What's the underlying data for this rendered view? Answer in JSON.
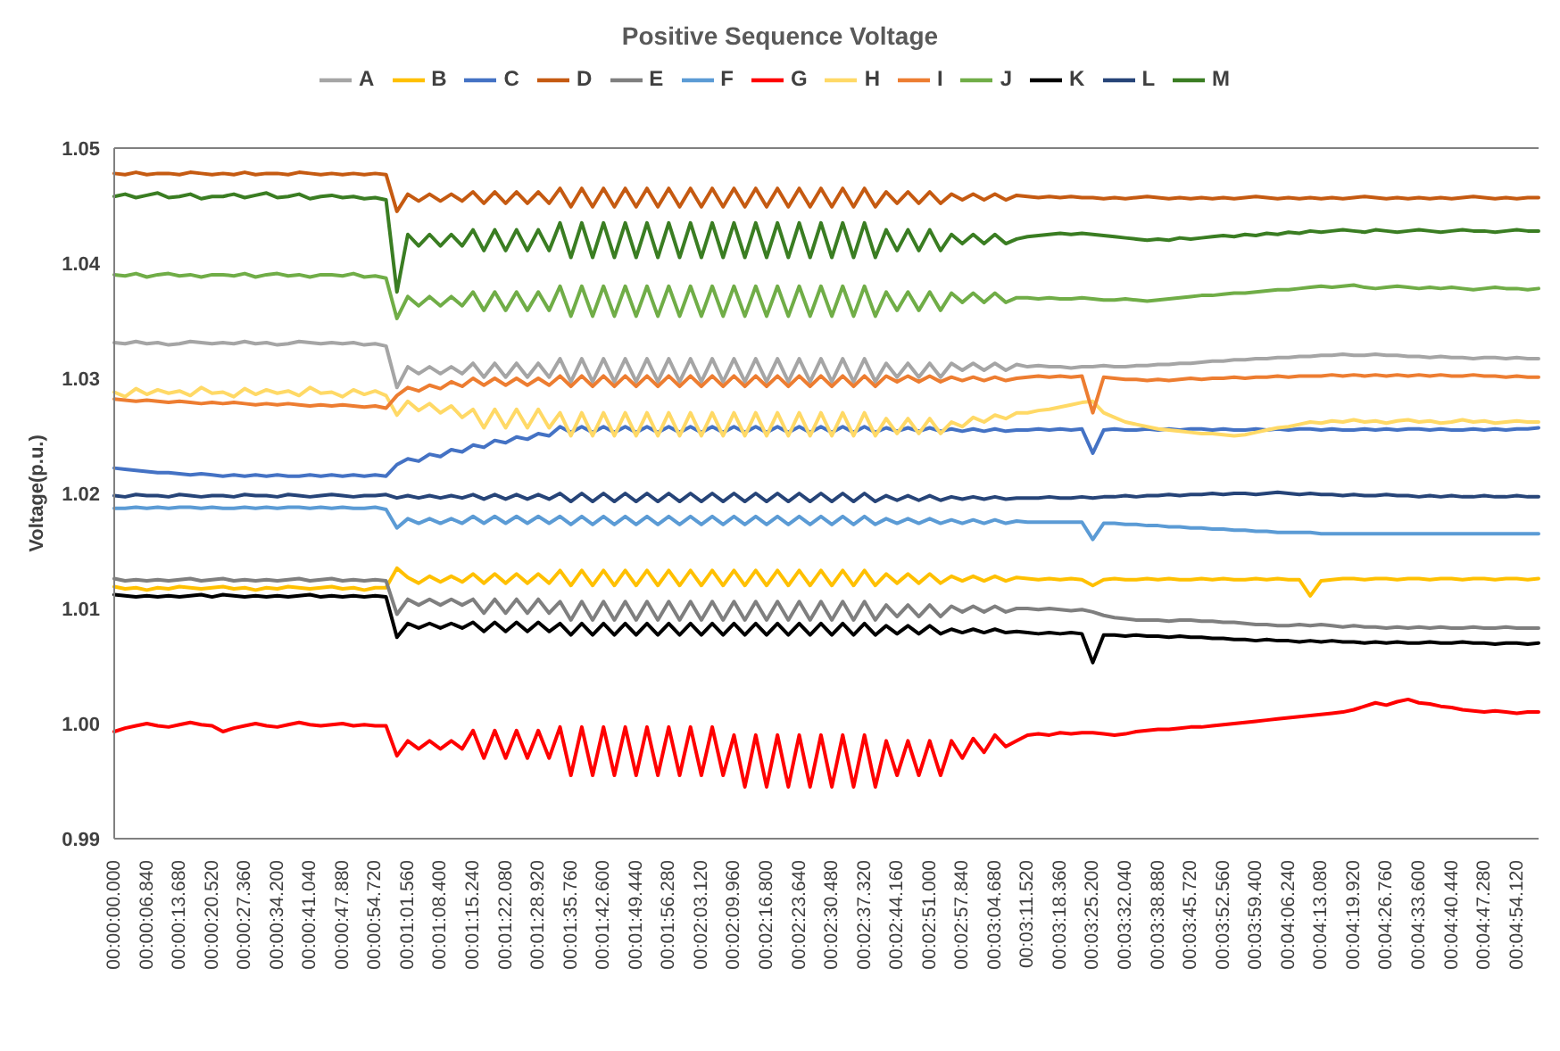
{
  "chart_data": {
    "type": "line",
    "title": "Positive Sequence Voltage",
    "ylabel": "Voltage(p.u.)",
    "legend": "top",
    "marker": "none",
    "line_style": "solid",
    "categories": [
      "00:00:00.000",
      null,
      null,
      "00:00:06.840",
      null,
      null,
      "00:00:13.680",
      null,
      null,
      "00:00:20.520",
      null,
      null,
      "00:00:27.360",
      null,
      null,
      "00:00:34.200",
      null,
      null,
      "00:00:41.040",
      null,
      null,
      "00:00:47.880",
      null,
      null,
      "00:00:54.720",
      null,
      null,
      "00:01:01.560",
      null,
      null,
      "00:01:08.400",
      null,
      null,
      "00:01:15.240",
      null,
      null,
      "00:01:22.080",
      null,
      null,
      "00:01:28.920",
      null,
      null,
      "00:01:35.760",
      null,
      null,
      "00:01:42.600",
      null,
      null,
      "00:01:49.440",
      null,
      null,
      "00:01:56.280",
      null,
      null,
      "00:02:03.120",
      null,
      null,
      "00:02:09.960",
      null,
      null,
      "00:02:16.800",
      null,
      null,
      "00:02:23.640",
      null,
      null,
      "00:02:30.480",
      null,
      null,
      "00:02:37.320",
      null,
      null,
      "00:02:44.160",
      null,
      null,
      "00:02:51.000",
      null,
      null,
      "00:02:57.840",
      null,
      null,
      "00:03:04.680",
      null,
      null,
      "00:03:11.520",
      null,
      null,
      "00:03:18.360",
      null,
      null,
      "00:03:25.200",
      null,
      null,
      "00:03:32.040",
      null,
      null,
      "00:03:38.880",
      null,
      null,
      "00:03:45.720",
      null,
      null,
      "00:03:52.560",
      null,
      null,
      "00:03:59.400",
      null,
      null,
      "00:04:06.240",
      null,
      null,
      "00:04:13.080",
      null,
      null,
      "00:04:19.920",
      null,
      null,
      "00:04:26.760",
      null,
      null,
      "00:04:33.600",
      null,
      null,
      "00:04:40.440",
      null,
      null,
      "00:04:47.280",
      null,
      null,
      "00:04:54.120",
      null,
      null
    ],
    "ylim": [
      0.99,
      1.05
    ],
    "yticks": [
      0.99,
      {
        "value": 1,
        "label": "1.00"
      },
      1.01,
      1.02,
      1.03,
      1.04,
      1.05
    ],
    "series": [
      {
        "name": "A",
        "color": "#a5a5a5",
        "values": [
          1.0331,
          1.033,
          1.0332,
          1.033,
          1.0331,
          1.0329,
          1.033,
          1.0332,
          1.0331,
          1.033,
          1.0331,
          1.033,
          1.0332,
          1.033,
          1.0331,
          1.0329,
          1.033,
          1.0332,
          1.0331,
          1.033,
          1.0331,
          1.033,
          1.0331,
          1.0329,
          1.033,
          1.0328,
          1.0292,
          1.031,
          1.0304,
          1.031,
          1.0304,
          1.031,
          1.0304,
          1.0313,
          1.0301,
          1.0313,
          1.0301,
          1.0313,
          1.0301,
          1.0313,
          1.0301,
          1.0317,
          1.0297,
          1.0317,
          1.0297,
          1.0317,
          1.0297,
          1.0317,
          1.0297,
          1.0317,
          1.0297,
          1.0317,
          1.0297,
          1.0317,
          1.0297,
          1.0317,
          1.0297,
          1.0317,
          1.0297,
          1.0317,
          1.0297,
          1.0317,
          1.0297,
          1.0317,
          1.0297,
          1.0317,
          1.0297,
          1.0317,
          1.0297,
          1.0317,
          1.0297,
          1.0313,
          1.0301,
          1.0313,
          1.0301,
          1.0313,
          1.0301,
          1.0313,
          1.0307,
          1.0313,
          1.0307,
          1.0313,
          1.0307,
          1.0312,
          1.031,
          1.0311,
          1.031,
          1.031,
          1.0309,
          1.031,
          1.031,
          1.0311,
          1.031,
          1.031,
          1.0311,
          1.0311,
          1.0312,
          1.0312,
          1.0313,
          1.0313,
          1.0314,
          1.0315,
          1.0315,
          1.0316,
          1.0316,
          1.0317,
          1.0317,
          1.0318,
          1.0318,
          1.0319,
          1.0319,
          1.032,
          1.032,
          1.0321,
          1.032,
          1.032,
          1.0321,
          1.032,
          1.032,
          1.0319,
          1.0319,
          1.0318,
          1.0319,
          1.0318,
          1.0318,
          1.0317,
          1.0318,
          1.0318,
          1.0317,
          1.0318,
          1.0317,
          1.0317
        ]
      },
      {
        "name": "B",
        "color": "#ffc000",
        "values": [
          1.0119,
          1.0117,
          1.0118,
          1.0116,
          1.0118,
          1.0117,
          1.0119,
          1.0118,
          1.0117,
          1.0118,
          1.0119,
          1.0117,
          1.0118,
          1.0116,
          1.0118,
          1.0117,
          1.0119,
          1.0118,
          1.0117,
          1.0118,
          1.0119,
          1.0117,
          1.0118,
          1.0116,
          1.0118,
          1.0118,
          1.0135,
          1.0127,
          1.0122,
          1.0128,
          1.0123,
          1.0128,
          1.0123,
          1.013,
          1.0122,
          1.013,
          1.0122,
          1.013,
          1.0122,
          1.013,
          1.0122,
          1.0133,
          1.012,
          1.0133,
          1.012,
          1.0133,
          1.012,
          1.0133,
          1.012,
          1.0133,
          1.012,
          1.0133,
          1.012,
          1.0133,
          1.012,
          1.0133,
          1.012,
          1.0133,
          1.012,
          1.0133,
          1.012,
          1.0133,
          1.012,
          1.0133,
          1.012,
          1.0133,
          1.012,
          1.0133,
          1.012,
          1.0133,
          1.012,
          1.013,
          1.0122,
          1.013,
          1.0122,
          1.013,
          1.0122,
          1.0128,
          1.0124,
          1.0128,
          1.0124,
          1.0128,
          1.0124,
          1.0127,
          1.0126,
          1.0125,
          1.0126,
          1.0125,
          1.0126,
          1.0125,
          1.012,
          1.0125,
          1.0126,
          1.0125,
          1.0125,
          1.0126,
          1.0125,
          1.0126,
          1.0125,
          1.0125,
          1.0126,
          1.0125,
          1.0126,
          1.0125,
          1.0125,
          1.0126,
          1.0125,
          1.0126,
          1.0125,
          1.0125,
          1.0111,
          1.0124,
          1.0125,
          1.0126,
          1.0126,
          1.0125,
          1.0126,
          1.0126,
          1.0125,
          1.0126,
          1.0126,
          1.0125,
          1.0126,
          1.0126,
          1.0125,
          1.0126,
          1.0126,
          1.0125,
          1.0126,
          1.0126,
          1.0125,
          1.0126
        ]
      },
      {
        "name": "C",
        "color": "#4472c4",
        "values": [
          1.0222,
          1.0221,
          1.022,
          1.0219,
          1.0218,
          1.0218,
          1.0217,
          1.0216,
          1.0217,
          1.0216,
          1.0215,
          1.0216,
          1.0215,
          1.0216,
          1.0215,
          1.0216,
          1.0215,
          1.0215,
          1.0216,
          1.0215,
          1.0216,
          1.0215,
          1.0216,
          1.0215,
          1.0216,
          1.0215,
          1.0225,
          1.023,
          1.0228,
          1.0234,
          1.0232,
          1.0238,
          1.0236,
          1.0242,
          1.024,
          1.0246,
          1.0244,
          1.0249,
          1.0247,
          1.0252,
          1.025,
          1.0258,
          1.0253,
          1.0258,
          1.0253,
          1.0258,
          1.0253,
          1.0258,
          1.0253,
          1.0258,
          1.0253,
          1.0258,
          1.0253,
          1.0258,
          1.0253,
          1.0258,
          1.0253,
          1.0258,
          1.0253,
          1.0258,
          1.0253,
          1.0258,
          1.0253,
          1.0258,
          1.0253,
          1.0258,
          1.0253,
          1.0258,
          1.0253,
          1.0258,
          1.0253,
          1.0257,
          1.0254,
          1.0257,
          1.0254,
          1.0257,
          1.0254,
          1.0256,
          1.0254,
          1.0256,
          1.0254,
          1.0256,
          1.0254,
          1.0255,
          1.0255,
          1.0256,
          1.0255,
          1.0256,
          1.0255,
          1.0256,
          1.0235,
          1.0255,
          1.0256,
          1.0255,
          1.0255,
          1.0256,
          1.0255,
          1.0256,
          1.0255,
          1.0256,
          1.0256,
          1.0255,
          1.0256,
          1.0255,
          1.0255,
          1.0256,
          1.0255,
          1.0256,
          1.0255,
          1.0256,
          1.0256,
          1.0255,
          1.0256,
          1.0255,
          1.0255,
          1.0256,
          1.0255,
          1.0256,
          1.0255,
          1.0256,
          1.0256,
          1.0255,
          1.0256,
          1.0255,
          1.0255,
          1.0256,
          1.0255,
          1.0256,
          1.0255,
          1.0256,
          1.0256,
          1.0257
        ]
      },
      {
        "name": "D",
        "color": "#c55a11",
        "values": [
          1.0478,
          1.0477,
          1.0479,
          1.0477,
          1.0478,
          1.0478,
          1.0477,
          1.0479,
          1.0478,
          1.0477,
          1.0478,
          1.0477,
          1.0479,
          1.0477,
          1.0478,
          1.0478,
          1.0477,
          1.0479,
          1.0478,
          1.0477,
          1.0478,
          1.0477,
          1.0478,
          1.0477,
          1.0478,
          1.0477,
          1.0445,
          1.046,
          1.0454,
          1.046,
          1.0454,
          1.046,
          1.0454,
          1.0462,
          1.0452,
          1.0462,
          1.0452,
          1.0462,
          1.0452,
          1.0462,
          1.0452,
          1.0465,
          1.0449,
          1.0465,
          1.0449,
          1.0465,
          1.0449,
          1.0465,
          1.0449,
          1.0465,
          1.0449,
          1.0465,
          1.0449,
          1.0465,
          1.0449,
          1.0465,
          1.0449,
          1.0465,
          1.0449,
          1.0465,
          1.0449,
          1.0465,
          1.0449,
          1.0465,
          1.0449,
          1.0465,
          1.0449,
          1.0465,
          1.0449,
          1.0465,
          1.0449,
          1.0462,
          1.0452,
          1.0462,
          1.0452,
          1.0462,
          1.0452,
          1.046,
          1.0455,
          1.046,
          1.0455,
          1.046,
          1.0455,
          1.0459,
          1.0458,
          1.0457,
          1.0458,
          1.0457,
          1.0458,
          1.0457,
          1.0457,
          1.0456,
          1.0457,
          1.0456,
          1.0457,
          1.0458,
          1.0457,
          1.0456,
          1.0457,
          1.0456,
          1.0457,
          1.0456,
          1.0457,
          1.0456,
          1.0457,
          1.0458,
          1.0457,
          1.0456,
          1.0457,
          1.0456,
          1.0457,
          1.0456,
          1.0457,
          1.0456,
          1.0457,
          1.0458,
          1.0457,
          1.0456,
          1.0457,
          1.0456,
          1.0457,
          1.0456,
          1.0457,
          1.0456,
          1.0457,
          1.0458,
          1.0457,
          1.0456,
          1.0457,
          1.0456,
          1.0457,
          1.0457
        ]
      },
      {
        "name": "E",
        "color": "#7f7f7f",
        "values": [
          1.0126,
          1.0124,
          1.0125,
          1.0124,
          1.0125,
          1.0124,
          1.0125,
          1.0126,
          1.0124,
          1.0125,
          1.0126,
          1.0124,
          1.0125,
          1.0124,
          1.0125,
          1.0124,
          1.0125,
          1.0126,
          1.0124,
          1.0125,
          1.0126,
          1.0124,
          1.0125,
          1.0124,
          1.0125,
          1.0124,
          1.0095,
          1.0108,
          1.0103,
          1.0108,
          1.0103,
          1.0108,
          1.0103,
          1.0108,
          1.0096,
          1.0108,
          1.0096,
          1.0108,
          1.0096,
          1.0108,
          1.0096,
          1.0106,
          1.009,
          1.0106,
          1.009,
          1.0106,
          1.009,
          1.0106,
          1.009,
          1.0106,
          1.009,
          1.0106,
          1.009,
          1.0106,
          1.009,
          1.0106,
          1.009,
          1.0106,
          1.009,
          1.0106,
          1.009,
          1.0106,
          1.009,
          1.0106,
          1.009,
          1.0106,
          1.009,
          1.0106,
          1.009,
          1.0106,
          1.009,
          1.0103,
          1.0093,
          1.0103,
          1.0093,
          1.0103,
          1.0093,
          1.0102,
          1.0097,
          1.0102,
          1.0097,
          1.0102,
          1.0097,
          1.01,
          1.01,
          1.0099,
          1.01,
          1.0099,
          1.0098,
          1.0099,
          1.0097,
          1.0094,
          1.0092,
          1.0091,
          1.009,
          1.009,
          1.009,
          1.0089,
          1.009,
          1.009,
          1.0089,
          1.0089,
          1.0088,
          1.0088,
          1.0087,
          1.0086,
          1.0086,
          1.0085,
          1.0085,
          1.0086,
          1.0085,
          1.0086,
          1.0085,
          1.0084,
          1.0085,
          1.0084,
          1.0084,
          1.0083,
          1.0084,
          1.0083,
          1.0084,
          1.0083,
          1.0084,
          1.0083,
          1.0083,
          1.0084,
          1.0083,
          1.0083,
          1.0084,
          1.0083,
          1.0083,
          1.0083
        ]
      },
      {
        "name": "F",
        "color": "#5b9bd5",
        "values": [
          1.0187,
          1.0187,
          1.0188,
          1.0187,
          1.0188,
          1.0187,
          1.0188,
          1.0188,
          1.0187,
          1.0188,
          1.0187,
          1.0187,
          1.0188,
          1.0187,
          1.0188,
          1.0187,
          1.0188,
          1.0188,
          1.0187,
          1.0188,
          1.0187,
          1.0188,
          1.0187,
          1.0187,
          1.0188,
          1.0186,
          1.017,
          1.0178,
          1.0174,
          1.0178,
          1.0174,
          1.0178,
          1.0174,
          1.018,
          1.0174,
          1.018,
          1.0174,
          1.018,
          1.0174,
          1.018,
          1.0174,
          1.018,
          1.0173,
          1.018,
          1.0173,
          1.018,
          1.0173,
          1.018,
          1.0173,
          1.018,
          1.0173,
          1.018,
          1.0173,
          1.018,
          1.0173,
          1.018,
          1.0173,
          1.018,
          1.0173,
          1.018,
          1.0173,
          1.018,
          1.0173,
          1.018,
          1.0173,
          1.018,
          1.0173,
          1.018,
          1.0173,
          1.018,
          1.0173,
          1.0178,
          1.0174,
          1.0178,
          1.0174,
          1.0178,
          1.0174,
          1.0177,
          1.0174,
          1.0177,
          1.0174,
          1.0177,
          1.0174,
          1.0176,
          1.0175,
          1.0175,
          1.0175,
          1.0175,
          1.0175,
          1.0175,
          1.016,
          1.0174,
          1.0174,
          1.0173,
          1.0173,
          1.0172,
          1.0172,
          1.0171,
          1.0171,
          1.017,
          1.017,
          1.0169,
          1.0169,
          1.0168,
          1.0168,
          1.0167,
          1.0167,
          1.0166,
          1.0166,
          1.0166,
          1.0166,
          1.0165,
          1.0165,
          1.0165,
          1.0165,
          1.0165,
          1.0165,
          1.0165,
          1.0165,
          1.0165,
          1.0165,
          1.0165,
          1.0165,
          1.0165,
          1.0165,
          1.0165,
          1.0165,
          1.0165,
          1.0165,
          1.0165,
          1.0165,
          1.0165
        ]
      },
      {
        "name": "G",
        "color": "#ff0000",
        "values": [
          0.9993,
          0.9996,
          0.9998,
          1.0,
          0.9998,
          0.9997,
          0.9999,
          1.0001,
          0.9999,
          0.9998,
          0.9993,
          0.9996,
          0.9998,
          1.0,
          0.9998,
          0.9997,
          0.9999,
          1.0001,
          0.9999,
          0.9998,
          0.9999,
          1.0,
          0.9998,
          0.9999,
          0.9998,
          0.9998,
          0.9972,
          0.9985,
          0.9978,
          0.9985,
          0.9978,
          0.9985,
          0.9978,
          0.9994,
          0.997,
          0.9994,
          0.997,
          0.9994,
          0.997,
          0.9994,
          0.997,
          0.9997,
          0.9955,
          0.9997,
          0.9955,
          0.9997,
          0.9955,
          0.9997,
          0.9955,
          0.9997,
          0.9955,
          0.9997,
          0.9955,
          0.9997,
          0.9955,
          0.9997,
          0.9955,
          0.999,
          0.9945,
          0.999,
          0.9945,
          0.999,
          0.9945,
          0.999,
          0.9945,
          0.999,
          0.9945,
          0.999,
          0.9945,
          0.999,
          0.9945,
          0.9985,
          0.9955,
          0.9985,
          0.9955,
          0.9985,
          0.9955,
          0.9985,
          0.997,
          0.9987,
          0.9975,
          0.999,
          0.998,
          0.9985,
          0.999,
          0.9991,
          0.999,
          0.9992,
          0.9991,
          0.9992,
          0.9992,
          0.9991,
          0.999,
          0.9991,
          0.9993,
          0.9994,
          0.9995,
          0.9995,
          0.9996,
          0.9997,
          0.9997,
          0.9998,
          0.9999,
          1.0,
          1.0001,
          1.0002,
          1.0003,
          1.0004,
          1.0005,
          1.0006,
          1.0007,
          1.0008,
          1.0009,
          1.001,
          1.0012,
          1.0015,
          1.0018,
          1.0016,
          1.0019,
          1.0021,
          1.0018,
          1.0017,
          1.0015,
          1.0014,
          1.0012,
          1.0011,
          1.001,
          1.0011,
          1.001,
          1.0009,
          1.001,
          1.001
        ]
      },
      {
        "name": "H",
        "color": "#ffd966",
        "values": [
          1.0288,
          1.0284,
          1.0291,
          1.0286,
          1.029,
          1.0287,
          1.0289,
          1.0285,
          1.0292,
          1.0287,
          1.0288,
          1.0284,
          1.0291,
          1.0286,
          1.029,
          1.0287,
          1.0289,
          1.0285,
          1.0292,
          1.0287,
          1.0288,
          1.0284,
          1.029,
          1.0286,
          1.0289,
          1.0285,
          1.0268,
          1.028,
          1.0272,
          1.0278,
          1.027,
          1.0276,
          1.0266,
          1.0273,
          1.0257,
          1.0273,
          1.0257,
          1.0273,
          1.0257,
          1.0273,
          1.0257,
          1.027,
          1.025,
          1.027,
          1.025,
          1.027,
          1.025,
          1.027,
          1.025,
          1.027,
          1.025,
          1.027,
          1.025,
          1.027,
          1.025,
          1.027,
          1.025,
          1.027,
          1.025,
          1.027,
          1.025,
          1.027,
          1.025,
          1.027,
          1.025,
          1.027,
          1.025,
          1.027,
          1.025,
          1.027,
          1.025,
          1.0265,
          1.0252,
          1.0265,
          1.0252,
          1.0265,
          1.0252,
          1.0262,
          1.0258,
          1.0266,
          1.0262,
          1.0268,
          1.0265,
          1.027,
          1.027,
          1.0272,
          1.0273,
          1.0275,
          1.0277,
          1.0279,
          1.028,
          1.027,
          1.0266,
          1.0262,
          1.026,
          1.0258,
          1.0256,
          1.0255,
          1.0254,
          1.0253,
          1.0252,
          1.0252,
          1.0251,
          1.025,
          1.0251,
          1.0253,
          1.0255,
          1.0257,
          1.0258,
          1.026,
          1.0262,
          1.0261,
          1.0263,
          1.0262,
          1.0264,
          1.0262,
          1.0263,
          1.0261,
          1.0263,
          1.0264,
          1.0262,
          1.0263,
          1.0261,
          1.0262,
          1.0264,
          1.0262,
          1.0263,
          1.0261,
          1.0262,
          1.0263,
          1.0262,
          1.0262
        ]
      },
      {
        "name": "I",
        "color": "#ed7d31",
        "values": [
          1.0282,
          1.0281,
          1.028,
          1.0281,
          1.028,
          1.0279,
          1.028,
          1.0279,
          1.0278,
          1.0279,
          1.0278,
          1.0279,
          1.0278,
          1.0277,
          1.0278,
          1.0277,
          1.0278,
          1.0277,
          1.0276,
          1.0277,
          1.0276,
          1.0277,
          1.0276,
          1.0275,
          1.0276,
          1.0274,
          1.0285,
          1.0292,
          1.0289,
          1.0294,
          1.0291,
          1.0297,
          1.0293,
          1.03,
          1.0294,
          1.03,
          1.0294,
          1.03,
          1.0294,
          1.03,
          1.0294,
          1.0302,
          1.0293,
          1.0302,
          1.0293,
          1.0302,
          1.0293,
          1.0302,
          1.0293,
          1.0302,
          1.0293,
          1.0302,
          1.0293,
          1.0302,
          1.0293,
          1.0302,
          1.0293,
          1.0302,
          1.0293,
          1.0302,
          1.0293,
          1.0302,
          1.0293,
          1.0302,
          1.0293,
          1.0302,
          1.0293,
          1.0302,
          1.0293,
          1.0302,
          1.0293,
          1.0302,
          1.0297,
          1.0302,
          1.0297,
          1.0302,
          1.0297,
          1.0301,
          1.0298,
          1.0301,
          1.0298,
          1.0301,
          1.0298,
          1.03,
          1.0301,
          1.0302,
          1.0301,
          1.0302,
          1.0301,
          1.0302,
          1.027,
          1.0301,
          1.03,
          1.0299,
          1.0299,
          1.0298,
          1.0299,
          1.0298,
          1.0299,
          1.03,
          1.0299,
          1.03,
          1.03,
          1.0301,
          1.03,
          1.0301,
          1.0301,
          1.0302,
          1.0301,
          1.0302,
          1.0302,
          1.0302,
          1.0303,
          1.0302,
          1.0303,
          1.0302,
          1.0303,
          1.0302,
          1.0303,
          1.0302,
          1.0303,
          1.0302,
          1.0303,
          1.0302,
          1.0302,
          1.0303,
          1.0302,
          1.0302,
          1.0301,
          1.0302,
          1.0301,
          1.0301
        ]
      },
      {
        "name": "J",
        "color": "#70ad47",
        "values": [
          1.039,
          1.0389,
          1.0391,
          1.0388,
          1.039,
          1.0391,
          1.0389,
          1.039,
          1.0388,
          1.039,
          1.039,
          1.0389,
          1.0391,
          1.0388,
          1.039,
          1.0391,
          1.0389,
          1.039,
          1.0388,
          1.039,
          1.039,
          1.0389,
          1.0391,
          1.0388,
          1.0389,
          1.0387,
          1.0352,
          1.0371,
          1.0363,
          1.0371,
          1.0363,
          1.0371,
          1.0363,
          1.0375,
          1.0359,
          1.0375,
          1.0359,
          1.0375,
          1.0359,
          1.0375,
          1.0359,
          1.038,
          1.0354,
          1.038,
          1.0354,
          1.038,
          1.0354,
          1.038,
          1.0354,
          1.038,
          1.0354,
          1.038,
          1.0354,
          1.038,
          1.0354,
          1.038,
          1.0354,
          1.038,
          1.0354,
          1.038,
          1.0354,
          1.038,
          1.0354,
          1.038,
          1.0354,
          1.038,
          1.0354,
          1.038,
          1.0354,
          1.038,
          1.0354,
          1.0375,
          1.0359,
          1.0375,
          1.0359,
          1.0375,
          1.0359,
          1.0374,
          1.0366,
          1.0374,
          1.0366,
          1.0374,
          1.0366,
          1.037,
          1.037,
          1.0369,
          1.037,
          1.0369,
          1.0369,
          1.037,
          1.0369,
          1.0368,
          1.0368,
          1.0369,
          1.0368,
          1.0367,
          1.0368,
          1.0369,
          1.037,
          1.0371,
          1.0372,
          1.0372,
          1.0373,
          1.0374,
          1.0374,
          1.0375,
          1.0376,
          1.0377,
          1.0377,
          1.0378,
          1.0379,
          1.038,
          1.0379,
          1.038,
          1.0381,
          1.0379,
          1.0378,
          1.0379,
          1.038,
          1.0379,
          1.0378,
          1.0379,
          1.0378,
          1.0379,
          1.0378,
          1.0377,
          1.0378,
          1.0379,
          1.0378,
          1.0378,
          1.0377,
          1.0378
        ]
      },
      {
        "name": "K",
        "color": "#000000",
        "values": [
          1.0112,
          1.0111,
          1.011,
          1.0111,
          1.011,
          1.0111,
          1.011,
          1.0111,
          1.0112,
          1.011,
          1.0112,
          1.0111,
          1.011,
          1.0111,
          1.011,
          1.0111,
          1.011,
          1.0111,
          1.0112,
          1.011,
          1.0111,
          1.011,
          1.0111,
          1.011,
          1.0111,
          1.011,
          1.0075,
          1.0087,
          1.0083,
          1.0087,
          1.0083,
          1.0087,
          1.0083,
          1.0088,
          1.008,
          1.0088,
          1.008,
          1.0088,
          1.008,
          1.0088,
          1.008,
          1.0087,
          1.0077,
          1.0087,
          1.0077,
          1.0087,
          1.0077,
          1.0087,
          1.0077,
          1.0087,
          1.0077,
          1.0087,
          1.0077,
          1.0087,
          1.0077,
          1.0087,
          1.0077,
          1.0087,
          1.0077,
          1.0087,
          1.0077,
          1.0087,
          1.0077,
          1.0087,
          1.0077,
          1.0087,
          1.0077,
          1.0087,
          1.0077,
          1.0087,
          1.0077,
          1.0085,
          1.0078,
          1.0085,
          1.0078,
          1.0085,
          1.0078,
          1.0082,
          1.0079,
          1.0082,
          1.0079,
          1.0082,
          1.0079,
          1.008,
          1.0079,
          1.0078,
          1.0079,
          1.0078,
          1.0079,
          1.0078,
          1.0053,
          1.0077,
          1.0077,
          1.0076,
          1.0077,
          1.0076,
          1.0076,
          1.0075,
          1.0076,
          1.0075,
          1.0075,
          1.0074,
          1.0074,
          1.0073,
          1.0073,
          1.0072,
          1.0073,
          1.0072,
          1.0072,
          1.0071,
          1.0072,
          1.0071,
          1.0072,
          1.0071,
          1.0071,
          1.007,
          1.0071,
          1.007,
          1.0071,
          1.007,
          1.007,
          1.0071,
          1.007,
          1.007,
          1.0071,
          1.007,
          1.007,
          1.0069,
          1.007,
          1.007,
          1.0069,
          1.007
        ]
      },
      {
        "name": "L",
        "color": "#264478",
        "values": [
          1.0198,
          1.0197,
          1.0199,
          1.0198,
          1.0198,
          1.0197,
          1.0199,
          1.0198,
          1.0197,
          1.0198,
          1.0198,
          1.0197,
          1.0199,
          1.0198,
          1.0198,
          1.0197,
          1.0199,
          1.0198,
          1.0197,
          1.0198,
          1.0199,
          1.0198,
          1.0197,
          1.0198,
          1.0198,
          1.0199,
          1.0196,
          1.0198,
          1.0196,
          1.0198,
          1.0196,
          1.0198,
          1.0196,
          1.0199,
          1.0195,
          1.0199,
          1.0195,
          1.0199,
          1.0195,
          1.0199,
          1.0195,
          1.02,
          1.0193,
          1.02,
          1.0193,
          1.02,
          1.0193,
          1.02,
          1.0193,
          1.02,
          1.0193,
          1.02,
          1.0193,
          1.02,
          1.0193,
          1.02,
          1.0193,
          1.02,
          1.0193,
          1.02,
          1.0193,
          1.02,
          1.0193,
          1.02,
          1.0193,
          1.02,
          1.0193,
          1.02,
          1.0193,
          1.02,
          1.0193,
          1.0198,
          1.0194,
          1.0198,
          1.0194,
          1.0198,
          1.0194,
          1.0197,
          1.0195,
          1.0197,
          1.0195,
          1.0197,
          1.0195,
          1.0196,
          1.0196,
          1.0196,
          1.0197,
          1.0196,
          1.0196,
          1.0197,
          1.0196,
          1.0197,
          1.0197,
          1.0198,
          1.0197,
          1.0198,
          1.0198,
          1.0199,
          1.0198,
          1.0199,
          1.0199,
          1.02,
          1.0199,
          1.02,
          1.02,
          1.0199,
          1.02,
          1.0201,
          1.02,
          1.0199,
          1.02,
          1.0199,
          1.0199,
          1.0198,
          1.0199,
          1.0198,
          1.0198,
          1.0199,
          1.0198,
          1.0198,
          1.0197,
          1.0198,
          1.0197,
          1.0198,
          1.0197,
          1.0197,
          1.0198,
          1.0197,
          1.0197,
          1.0198,
          1.0197,
          1.0197
        ]
      },
      {
        "name": "M",
        "color": "#3a7d22",
        "values": [
          1.0458,
          1.046,
          1.0457,
          1.0459,
          1.0461,
          1.0457,
          1.0458,
          1.046,
          1.0456,
          1.0458,
          1.0458,
          1.046,
          1.0457,
          1.0459,
          1.0461,
          1.0457,
          1.0458,
          1.046,
          1.0456,
          1.0458,
          1.0459,
          1.0457,
          1.0458,
          1.0456,
          1.0457,
          1.0455,
          1.0375,
          1.0425,
          1.0415,
          1.0425,
          1.0415,
          1.0425,
          1.0415,
          1.0429,
          1.0411,
          1.0429,
          1.0411,
          1.0429,
          1.0411,
          1.0429,
          1.0411,
          1.0435,
          1.0405,
          1.0435,
          1.0405,
          1.0435,
          1.0405,
          1.0435,
          1.0405,
          1.0435,
          1.0405,
          1.0435,
          1.0405,
          1.0435,
          1.0405,
          1.0435,
          1.0405,
          1.0435,
          1.0405,
          1.0435,
          1.0405,
          1.0435,
          1.0405,
          1.0435,
          1.0405,
          1.0435,
          1.0405,
          1.0435,
          1.0405,
          1.0435,
          1.0405,
          1.0429,
          1.0411,
          1.0429,
          1.0411,
          1.0429,
          1.0411,
          1.0425,
          1.0417,
          1.0425,
          1.0417,
          1.0425,
          1.0417,
          1.0421,
          1.0423,
          1.0424,
          1.0425,
          1.0426,
          1.0425,
          1.0426,
          1.0425,
          1.0424,
          1.0423,
          1.0422,
          1.0421,
          1.042,
          1.0421,
          1.042,
          1.0422,
          1.0421,
          1.0422,
          1.0423,
          1.0424,
          1.0423,
          1.0425,
          1.0424,
          1.0426,
          1.0425,
          1.0427,
          1.0426,
          1.0428,
          1.0427,
          1.0428,
          1.0429,
          1.0428,
          1.0427,
          1.0429,
          1.0428,
          1.0427,
          1.0428,
          1.0429,
          1.0428,
          1.0427,
          1.0428,
          1.0429,
          1.0428,
          1.0428,
          1.0427,
          1.0428,
          1.0429,
          1.0428,
          1.0428
        ]
      }
    ]
  }
}
